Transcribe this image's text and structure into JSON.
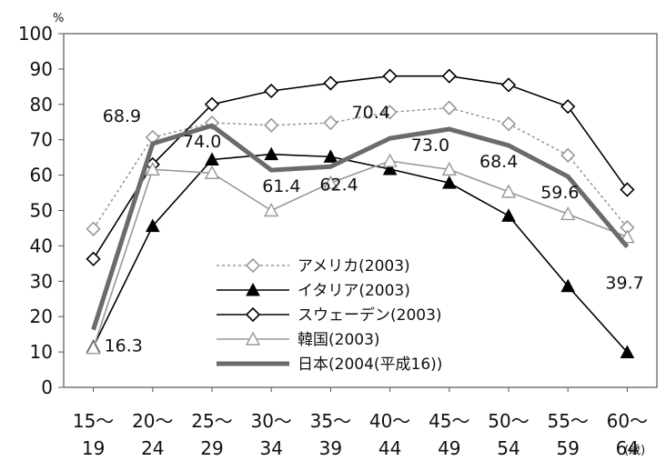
{
  "chart_data": {
    "type": "line",
    "title": "",
    "y_unit": "%",
    "x_unit": "(歳)",
    "ylim": [
      0,
      100
    ],
    "yticks": [
      0,
      10,
      20,
      30,
      40,
      50,
      60,
      70,
      80,
      90,
      100
    ],
    "grid": false,
    "legend_position": "bottom-center",
    "categories": [
      {
        "top": "15〜",
        "bottom": "19"
      },
      {
        "top": "20〜",
        "bottom": "24"
      },
      {
        "top": "25〜",
        "bottom": "29"
      },
      {
        "top": "30〜",
        "bottom": "34"
      },
      {
        "top": "35〜",
        "bottom": "39"
      },
      {
        "top": "40〜",
        "bottom": "44"
      },
      {
        "top": "45〜",
        "bottom": "49"
      },
      {
        "top": "50〜",
        "bottom": "54"
      },
      {
        "top": "55〜",
        "bottom": "59"
      },
      {
        "top": "60〜",
        "bottom": "64"
      }
    ],
    "series": [
      {
        "name": "アメリカ(2003)",
        "color": "#999999",
        "style": "dotted",
        "marker": "diamond-open",
        "values": [
          44.8,
          70.7,
          74.8,
          74.1,
          74.8,
          77.8,
          79.0,
          74.5,
          65.6,
          45.2
        ]
      },
      {
        "name": "イタリア(2003)",
        "color": "#000000",
        "style": "solid",
        "marker": "triangle-filled",
        "values": [
          11.5,
          45.6,
          64.4,
          65.9,
          65.2,
          61.7,
          57.8,
          48.5,
          28.6,
          9.9
        ]
      },
      {
        "name": "スウェーデン(2003)",
        "color": "#000000",
        "style": "solid",
        "marker": "diamond-open",
        "values": [
          36.3,
          63.0,
          80.0,
          83.8,
          86.0,
          88.0,
          88.0,
          85.5,
          79.4,
          55.9
        ]
      },
      {
        "name": "韓国(2003)",
        "color": "#999999",
        "style": "solid",
        "marker": "triangle-open",
        "values": [
          11.1,
          61.6,
          60.6,
          50.0,
          57.8,
          64.0,
          61.6,
          55.3,
          49.0,
          42.5
        ]
      },
      {
        "name": "日本(2004(平成16))",
        "color": "#6b6b6b",
        "style": "thick",
        "marker": "none",
        "values": [
          16.3,
          68.9,
          74.0,
          61.4,
          62.4,
          70.4,
          73.0,
          68.4,
          59.6,
          39.7
        ]
      }
    ],
    "data_labels": [
      {
        "series": 4,
        "index": 0,
        "text": "16.3"
      },
      {
        "series": 4,
        "index": 1,
        "text": "68.9"
      },
      {
        "series": 4,
        "index": 2,
        "text": "74.0"
      },
      {
        "series": 4,
        "index": 3,
        "text": "61.4"
      },
      {
        "series": 4,
        "index": 4,
        "text": "62.4"
      },
      {
        "series": 4,
        "index": 5,
        "text": "70.4"
      },
      {
        "series": 4,
        "index": 6,
        "text": "73.0"
      },
      {
        "series": 4,
        "index": 7,
        "text": "68.4"
      },
      {
        "series": 4,
        "index": 8,
        "text": "59.6"
      },
      {
        "series": 4,
        "index": 9,
        "text": "39.7"
      }
    ]
  }
}
